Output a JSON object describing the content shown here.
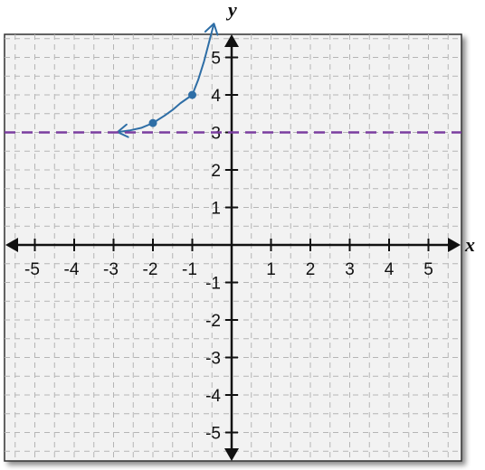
{
  "chart_data": {
    "type": "line",
    "title": "",
    "xlabel": "x",
    "ylabel": "y",
    "xlim": [
      -5.5,
      5.5
    ],
    "ylim": [
      -5.5,
      5.5
    ],
    "grid": true,
    "x_ticks": [
      -5,
      -4,
      -3,
      -2,
      -1,
      1,
      2,
      3,
      4,
      5
    ],
    "y_ticks": [
      -5,
      -4,
      -3,
      -2,
      -1,
      1,
      2,
      3,
      4,
      5
    ],
    "x_tick_labels": [
      "-5",
      "-4",
      "-3",
      "-2",
      "-1",
      "1",
      "2",
      "3",
      "4",
      "5"
    ],
    "y_tick_labels": [
      "-5",
      "-4",
      "-3",
      "-2",
      "-1",
      "1",
      "2",
      "3",
      "4",
      "5"
    ],
    "series": [
      {
        "kind": "curve",
        "color": "#2e6ea6",
        "x": [
          -2.9,
          -2.6,
          -2.3,
          -2.0,
          -1.7,
          -1.5,
          -1.3,
          -1.0,
          -0.85,
          -0.7,
          -0.55,
          -0.45
        ],
        "y": [
          3.01,
          3.05,
          3.12,
          3.25,
          3.45,
          3.6,
          3.78,
          4.0,
          4.4,
          4.9,
          5.5,
          5.9
        ],
        "arrow_left": true,
        "arrow_right": true
      },
      {
        "kind": "points",
        "color": "#2e6ea6",
        "x": [
          -2,
          -1
        ],
        "y": [
          3.25,
          4
        ]
      },
      {
        "kind": "asymptote",
        "color": "#7a3da0",
        "style": "dashed",
        "y": 3
      }
    ]
  }
}
